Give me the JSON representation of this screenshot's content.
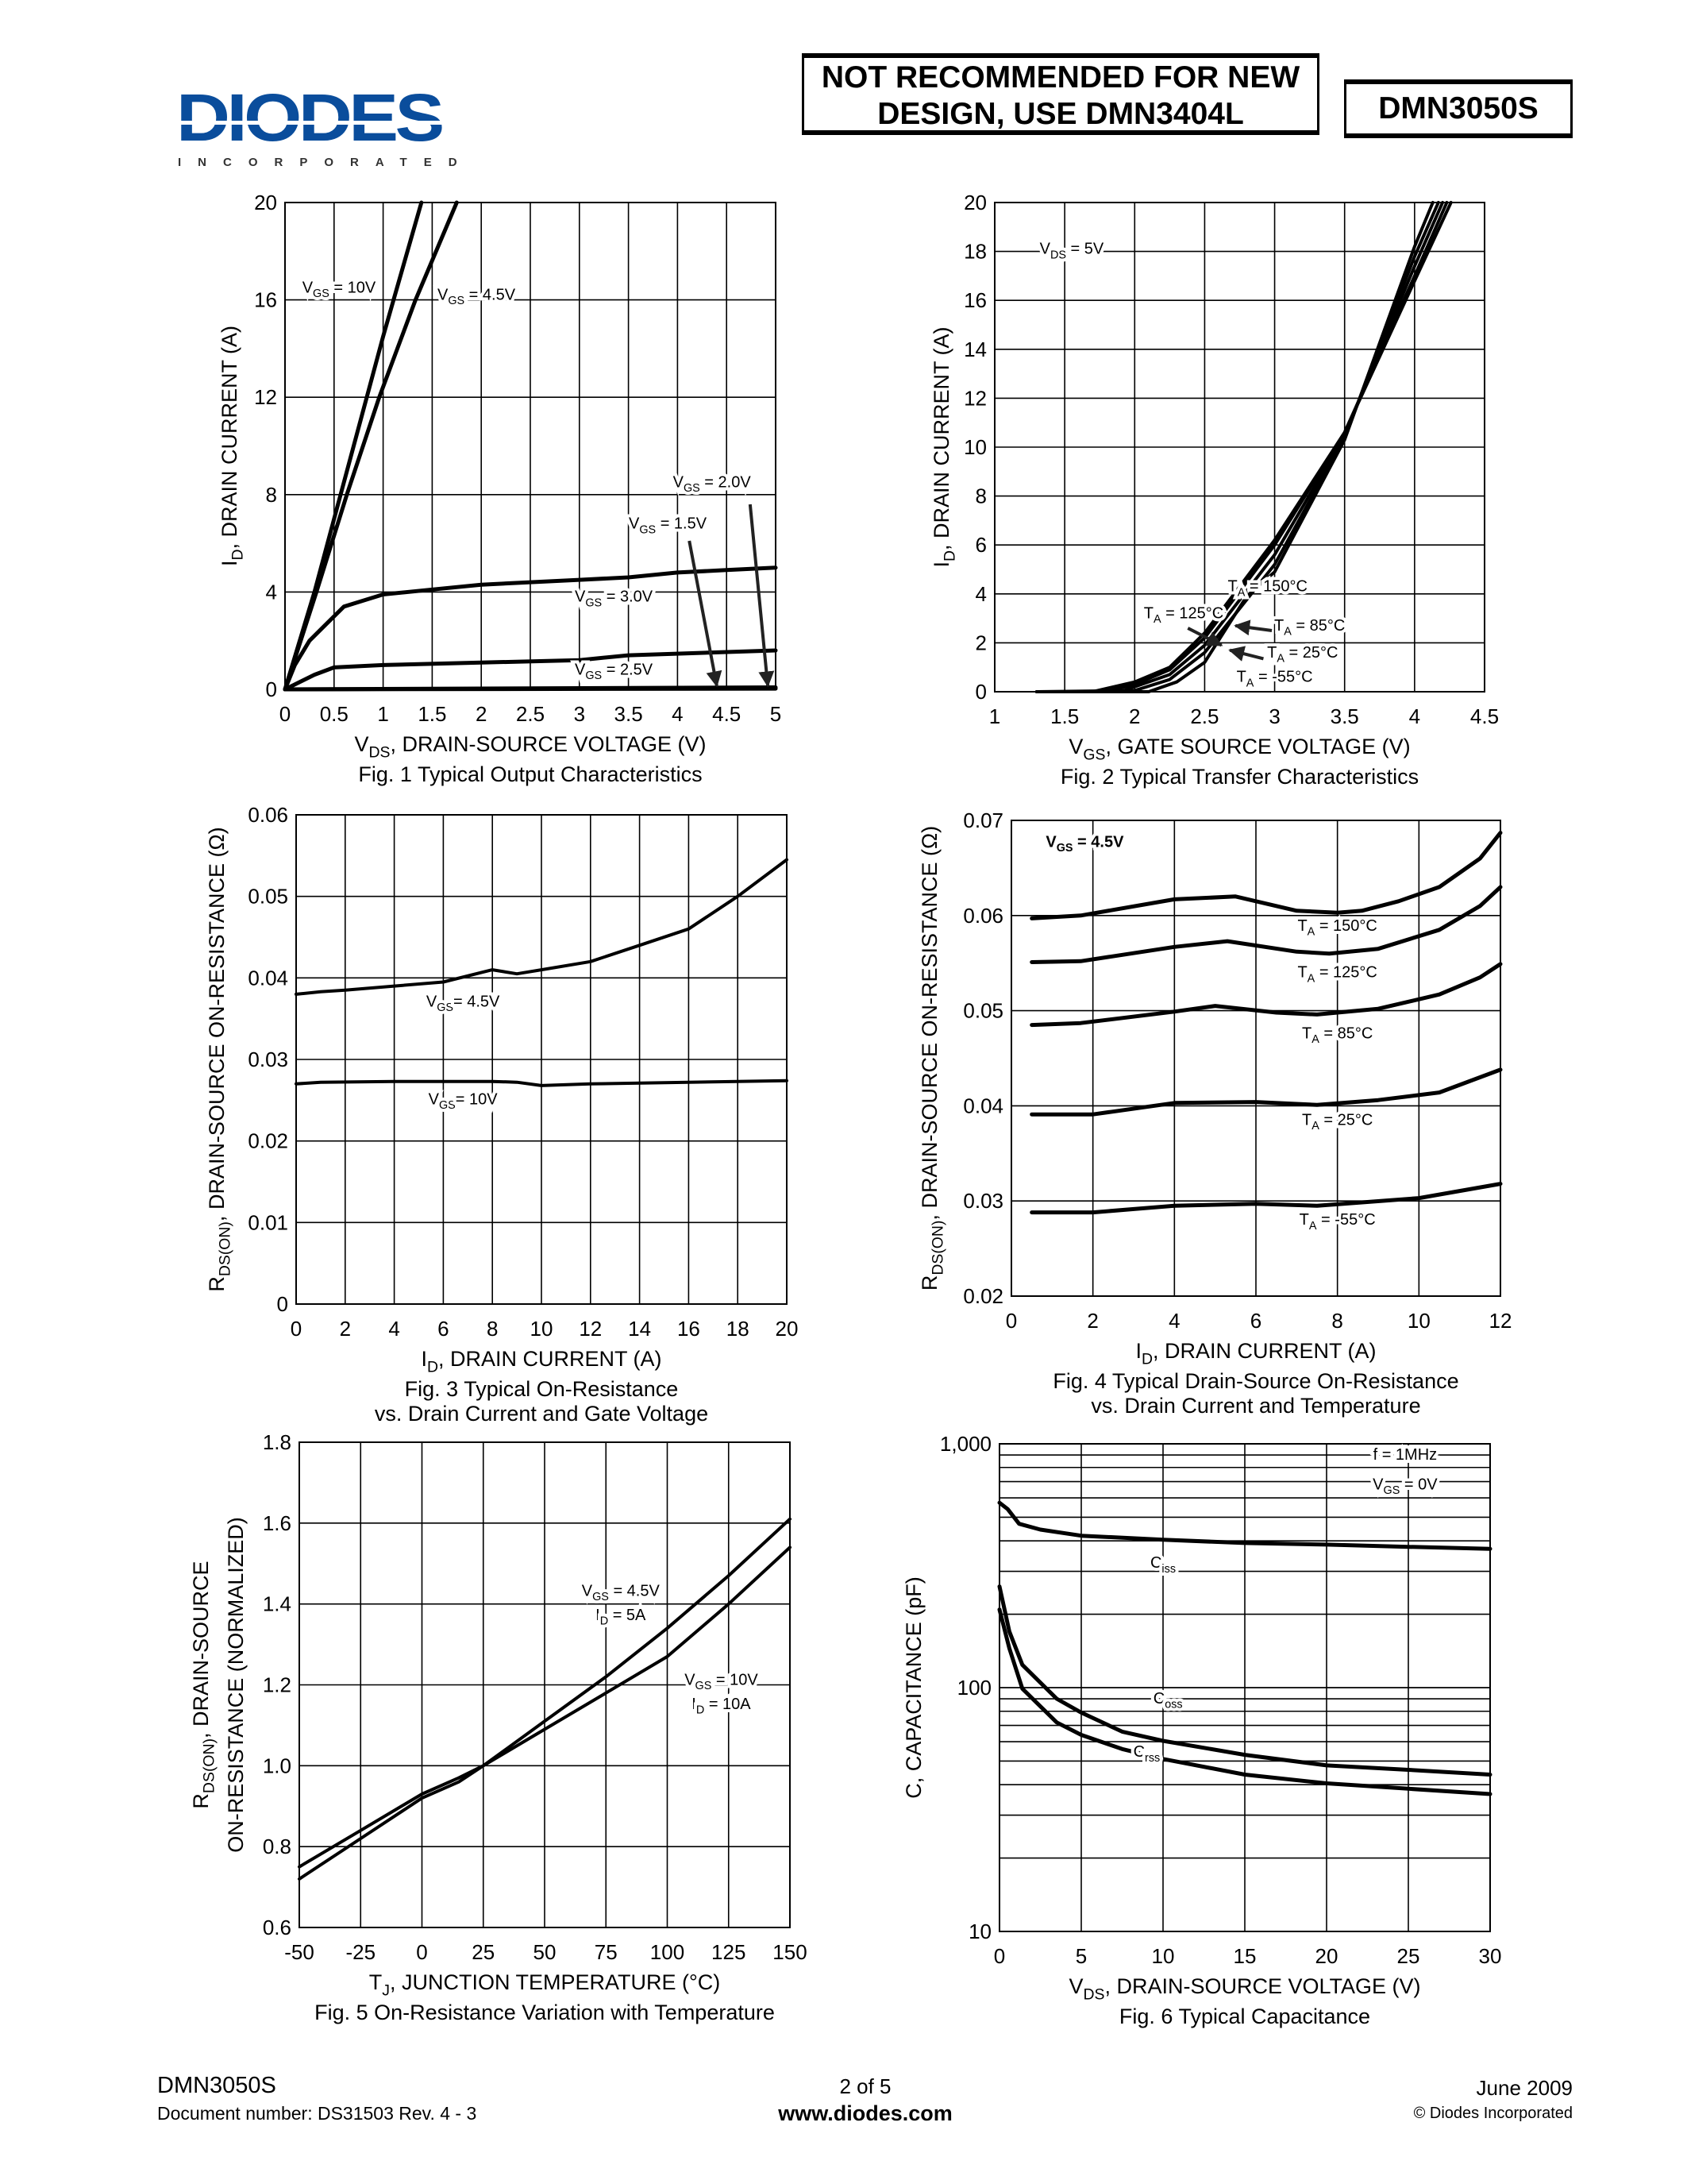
{
  "header": {
    "logo_text": "DIODES",
    "logo_subtext": "INCORPORATED",
    "logo_color": "#0a4d9c",
    "notice_line1": "NOT RECOMMENDED FOR NEW",
    "notice_line2": "DESIGN, USE DMN3404L",
    "part_number": "DMN3050S"
  },
  "footer": {
    "part_number": "DMN3050S",
    "document_number": "Document number: DS31503 Rev. 4 - 3",
    "page": "2 of 5",
    "website": "www.diodes.com",
    "date": "June 2009",
    "copyright": "© Diodes Incorporated"
  },
  "chart_data": [
    {
      "type": "line",
      "caption": [
        "Fig. 1 Typical Output Characteristics"
      ],
      "xlabel": {
        "base": "V",
        "sub": "DS",
        "tail": ", DRAIN-SOURCE VOLTAGE (V)"
      },
      "ylabel": [
        {
          "base": "I",
          "sub": "D",
          "tail": ", DRAIN CURRENT (A)"
        }
      ],
      "xlim": [
        0,
        5
      ],
      "ylim": [
        0,
        20
      ],
      "yscale": "linear",
      "grid": true,
      "xticks": [
        0,
        0.5,
        1,
        1.5,
        2,
        2.5,
        3,
        3.5,
        4,
        4.5,
        5
      ],
      "xticklabels": [
        "0",
        "0.5",
        "1",
        "1.5",
        "2",
        "2.5",
        "3",
        "3.5",
        "4",
        "4.5",
        "5"
      ],
      "yticks": [
        0,
        4,
        8,
        12,
        16,
        20
      ],
      "yticklabels": [
        "0",
        "4",
        "8",
        "12",
        "16",
        "20"
      ],
      "annotations": [
        [
          {
            "base": "V",
            "sub": "GS",
            "tail": " = 10V"
          }
        ],
        [
          {
            "base": "V",
            "sub": "GS",
            "tail": " = 4.5V"
          }
        ],
        [
          {
            "base": "V",
            "sub": "GS",
            "tail": " = 2.0V"
          }
        ],
        [
          {
            "base": "V",
            "sub": "GS",
            "tail": " = 1.5V"
          }
        ],
        [
          {
            "base": "V",
            "sub": "GS",
            "tail": " = 3.0V"
          }
        ],
        [
          {
            "base": "V",
            "sub": "GS",
            "tail": " = 2.5V"
          }
        ]
      ],
      "series": [
        {
          "x": [
            0,
            0.3,
            0.7,
            1.0,
            1.39
          ],
          "y": [
            0,
            4,
            10,
            14.5,
            20
          ]
        },
        {
          "x": [
            0,
            0.32,
            0.63,
            0.96,
            1.33,
            1.75
          ],
          "y": [
            0,
            4,
            8,
            12,
            16,
            20
          ]
        },
        {
          "x": [
            0,
            0.1,
            0.25,
            0.4,
            0.6,
            1.0,
            1.5,
            2.0,
            3.0,
            3.5,
            4.0,
            4.5,
            5.0
          ],
          "y": [
            0,
            1.0,
            2.0,
            2.6,
            3.4,
            3.9,
            4.1,
            4.3,
            4.5,
            4.6,
            4.8,
            4.9,
            5.0
          ]
        },
        {
          "x": [
            0,
            0.3,
            0.5,
            1.0,
            2.0,
            3.0,
            3.5,
            5.0
          ],
          "y": [
            0,
            0.6,
            0.9,
            1.0,
            1.1,
            1.2,
            1.4,
            1.6
          ]
        },
        {
          "x": [
            0,
            5
          ],
          "y": [
            0,
            0.08
          ]
        },
        {
          "x": [
            0,
            5
          ],
          "y": [
            0,
            0.03
          ]
        }
      ]
    },
    {
      "type": "line",
      "caption": [
        "Fig. 2 Typical Transfer Characteristics"
      ],
      "xlabel": {
        "base": "V",
        "sub": "GS",
        "tail": ", GATE SOURCE VOLTAGE (V)"
      },
      "ylabel": [
        {
          "base": "I",
          "sub": "D",
          "tail": ", DRAIN CURRENT (A)"
        }
      ],
      "xlim": [
        1,
        4.5
      ],
      "ylim": [
        0,
        20
      ],
      "yscale": "linear",
      "grid": true,
      "xticks": [
        1,
        1.5,
        2,
        2.5,
        3,
        3.5,
        4,
        4.5
      ],
      "xticklabels": [
        "1",
        "1.5",
        "2",
        "2.5",
        "3",
        "3.5",
        "4",
        "4.5"
      ],
      "yticks": [
        0,
        2,
        4,
        6,
        8,
        10,
        12,
        14,
        16,
        18,
        20
      ],
      "yticklabels": [
        "0",
        "2",
        "4",
        "6",
        "8",
        "10",
        "12",
        "14",
        "16",
        "18",
        "20"
      ],
      "annotations": [
        [
          {
            "base": "V",
            "sub": "DS",
            "tail": " = 5V"
          }
        ],
        [
          {
            "base": "T",
            "sub": "A",
            "tail": " = 150°C"
          }
        ],
        [
          {
            "base": "T",
            "sub": "A",
            "tail": " = 125°C"
          }
        ],
        [
          {
            "base": "T",
            "sub": "A",
            "tail": " = 85°C"
          }
        ],
        [
          {
            "base": "T",
            "sub": "A",
            "tail": " = 25°C"
          }
        ],
        [
          {
            "base": "T",
            "sub": "A",
            "tail": " = -55°C"
          }
        ]
      ],
      "series": [
        {
          "x": [
            1.3,
            1.7,
            2.0,
            2.25,
            2.5,
            3.0,
            3.5,
            4.0,
            4.26
          ],
          "y": [
            0,
            0,
            0.4,
            1.0,
            2.4,
            6.2,
            10.6,
            16.8,
            20
          ]
        },
        {
          "x": [
            1.3,
            1.8,
            2.0,
            2.25,
            2.5,
            3.0,
            3.5,
            4.0,
            4.23
          ],
          "y": [
            0,
            0,
            0.3,
            0.9,
            2.2,
            6.0,
            10.6,
            17.0,
            20
          ]
        },
        {
          "x": [
            1.3,
            1.9,
            2.0,
            2.25,
            2.5,
            3.0,
            3.5,
            4.0,
            4.2
          ],
          "y": [
            0,
            0,
            0.2,
            0.7,
            1.9,
            5.6,
            10.5,
            17.4,
            20
          ]
        },
        {
          "x": [
            1.3,
            2.0,
            2.25,
            2.5,
            3.0,
            3.5,
            4.0,
            4.17
          ],
          "y": [
            0,
            0.05,
            0.5,
            1.6,
            5.2,
            10.4,
            17.8,
            20
          ]
        },
        {
          "x": [
            1.3,
            2.1,
            2.3,
            2.5,
            2.8,
            3.0,
            3.5,
            4.0,
            4.13
          ],
          "y": [
            0,
            0,
            0.4,
            1.2,
            3.9,
            4.9,
            10.3,
            18.2,
            20
          ]
        }
      ]
    },
    {
      "type": "line",
      "caption": [
        "Fig. 3 Typical On-Resistance",
        "vs. Drain Current and Gate Voltage"
      ],
      "xlabel": {
        "base": "I",
        "sub": "D",
        "tail": ", DRAIN CURRENT (A)"
      },
      "ylabel": [
        {
          "base": "R",
          "sub": "DS(ON)",
          "tail": ", DRAIN-SOURCE ON-RESISTANCE (Ω)"
        }
      ],
      "xlim": [
        0,
        20
      ],
      "ylim": [
        0,
        0.06
      ],
      "yscale": "linear",
      "grid": true,
      "xticks": [
        0,
        2,
        4,
        6,
        8,
        10,
        12,
        14,
        16,
        18,
        20
      ],
      "xticklabels": [
        "0",
        "2",
        "4",
        "6",
        "8",
        "10",
        "12",
        "14",
        "16",
        "18",
        "20"
      ],
      "yticks": [
        0,
        0.01,
        0.02,
        0.03,
        0.04,
        0.05,
        0.06
      ],
      "yticklabels": [
        "0",
        "0.01",
        "0.02",
        "0.03",
        "0.04",
        "0.05",
        "0.06"
      ],
      "annotations": [
        [
          {
            "base": "V",
            "sub": "GS",
            "tail": "= 4.5V"
          }
        ],
        [
          {
            "base": "V",
            "sub": "GS",
            "tail": "= 10V"
          }
        ]
      ],
      "series": [
        {
          "x": [
            0,
            1,
            2,
            4,
            6,
            8,
            9,
            10,
            12,
            14,
            16,
            18,
            20
          ],
          "y": [
            0.038,
            0.0383,
            0.0385,
            0.039,
            0.0395,
            0.041,
            0.0405,
            0.041,
            0.042,
            0.044,
            0.046,
            0.05,
            0.0545
          ]
        },
        {
          "x": [
            0,
            1,
            4,
            8,
            9,
            10,
            12,
            16,
            20
          ],
          "y": [
            0.027,
            0.0272,
            0.0273,
            0.0273,
            0.0272,
            0.0268,
            0.027,
            0.0272,
            0.0274
          ]
        }
      ]
    },
    {
      "type": "line",
      "caption": [
        "Fig. 4  Typical Drain-Source On-Resistance",
        "vs. Drain Current and Temperature"
      ],
      "xlabel": {
        "base": "I",
        "sub": "D",
        "tail": ", DRAIN CURRENT (A)"
      },
      "ylabel": [
        {
          "base": "R",
          "sub": "DS(ON)",
          "tail": ", DRAIN-SOURCE ON-RESISTANCE (Ω)"
        }
      ],
      "xlim": [
        0,
        12
      ],
      "ylim": [
        0.02,
        0.07
      ],
      "yscale": "linear",
      "grid": true,
      "xticks": [
        0,
        2,
        4,
        6,
        8,
        10,
        12
      ],
      "xticklabels": [
        "0",
        "2",
        "4",
        "6",
        "8",
        "10",
        "12"
      ],
      "yticks": [
        0.02,
        0.03,
        0.04,
        0.05,
        0.06,
        0.07
      ],
      "yticklabels": [
        "0.02",
        "0.03",
        "0.04",
        "0.05",
        "0.06",
        "0.07"
      ],
      "annotations": [
        [
          {
            "base": "V",
            "sub": "GS",
            "tail": " = 4.5V"
          }
        ],
        [
          {
            "base": "T",
            "sub": "A",
            "tail": " = 150°C"
          }
        ],
        [
          {
            "base": "T",
            "sub": "A",
            "tail": " = 125°C"
          }
        ],
        [
          {
            "base": "T",
            "sub": "A",
            "tail": " = 85°C"
          }
        ],
        [
          {
            "base": "T",
            "sub": "A",
            "tail": " = 25°C"
          }
        ],
        [
          {
            "base": "T",
            "sub": "A",
            "tail": " = -55°C"
          }
        ]
      ],
      "series": [
        {
          "x": [
            0.5,
            1.7,
            4,
            5.5,
            7,
            8,
            8.6,
            9.5,
            10.5,
            11.5,
            12
          ],
          "y": [
            0.0597,
            0.06,
            0.0617,
            0.062,
            0.0605,
            0.0603,
            0.0605,
            0.0615,
            0.063,
            0.066,
            0.0687
          ]
        },
        {
          "x": [
            0.5,
            1.7,
            4,
            5.3,
            7,
            7.8,
            9,
            10.5,
            11.5,
            12
          ],
          "y": [
            0.0551,
            0.0552,
            0.0567,
            0.0573,
            0.0562,
            0.056,
            0.0565,
            0.0585,
            0.061,
            0.063
          ]
        },
        {
          "x": [
            0.5,
            1.7,
            4,
            5,
            6.5,
            7.5,
            9,
            10.5,
            11.5,
            12
          ],
          "y": [
            0.0485,
            0.0487,
            0.0499,
            0.0505,
            0.0498,
            0.0496,
            0.0502,
            0.0517,
            0.0535,
            0.0549
          ]
        },
        {
          "x": [
            0.5,
            2,
            4,
            6,
            7.5,
            9,
            10.5,
            12
          ],
          "y": [
            0.0391,
            0.0391,
            0.0403,
            0.0404,
            0.0401,
            0.0406,
            0.0414,
            0.0438
          ]
        },
        {
          "x": [
            0.5,
            2,
            4,
            6,
            7.5,
            10,
            12
          ],
          "y": [
            0.0288,
            0.0288,
            0.0295,
            0.0297,
            0.0295,
            0.0303,
            0.0318
          ]
        }
      ]
    },
    {
      "type": "line",
      "caption": [
        "Fig. 5 On-Resistance Variation with Temperature"
      ],
      "xlabel": {
        "base": "T",
        "sub": "J",
        "tail": ", JUNCTION TEMPERATURE (°C)"
      },
      "ylabel": [
        {
          "base": "R",
          "sub": "DS(ON)",
          "tail": ", DRAIN-SOURCE"
        },
        {
          "base": "",
          "sub": "",
          "tail": "ON-RESISTANCE (NORMALIZED)"
        }
      ],
      "xlim": [
        -50,
        150
      ],
      "ylim": [
        0.6,
        1.8
      ],
      "yscale": "linear",
      "grid": true,
      "xticks": [
        -50,
        -25,
        0,
        25,
        50,
        75,
        100,
        125,
        150
      ],
      "xticklabels": [
        "-50",
        "-25",
        "0",
        "25",
        "50",
        "75",
        "100",
        "125",
        "150"
      ],
      "yticks": [
        0.6,
        0.8,
        1.0,
        1.2,
        1.4,
        1.6,
        1.8
      ],
      "yticklabels": [
        "0.6",
        "0.8",
        "1.0",
        "1.2",
        "1.4",
        "1.6",
        "1.8"
      ],
      "annotations": [
        [
          {
            "base": "V",
            "sub": "GS",
            "tail": " = 4.5V"
          },
          {
            "base": "I",
            "sub": "D",
            "tail": " = 5A"
          }
        ],
        [
          {
            "base": "V",
            "sub": "GS",
            "tail": " = 10V"
          },
          {
            "base": "I",
            "sub": "D",
            "tail": " = 10A"
          }
        ]
      ],
      "series": [
        {
          "x": [
            -50,
            -25,
            0,
            15,
            25,
            50,
            75,
            100,
            125,
            150
          ],
          "y": [
            0.72,
            0.82,
            0.92,
            0.96,
            1.0,
            1.11,
            1.22,
            1.34,
            1.47,
            1.61
          ]
        },
        {
          "x": [
            -50,
            -25,
            0,
            15,
            25,
            50,
            75,
            100,
            125,
            150
          ],
          "y": [
            0.75,
            0.84,
            0.93,
            0.97,
            1.0,
            1.09,
            1.18,
            1.27,
            1.4,
            1.54
          ]
        }
      ]
    },
    {
      "type": "line",
      "caption": [
        "Fig. 6 Typical Capacitance"
      ],
      "xlabel": {
        "base": "V",
        "sub": "DS",
        "tail": ", DRAIN-SOURCE VOLTAGE (V)"
      },
      "ylabel": [
        {
          "base": "",
          "sub": "",
          "tail": "C, CAPACITANCE (pF)"
        }
      ],
      "xlim": [
        0,
        30
      ],
      "ylim": [
        10,
        1000
      ],
      "yscale": "log",
      "grid": true,
      "xticks": [
        0,
        5,
        10,
        15,
        20,
        25,
        30
      ],
      "xticklabels": [
        "0",
        "5",
        "10",
        "15",
        "20",
        "25",
        "30"
      ],
      "yticks": [
        10,
        100,
        1000
      ],
      "yticklabels": [
        "10",
        "100",
        "1,000"
      ],
      "annotations": [
        [
          {
            "base": "",
            "sub": "",
            "tail": "f = 1MHz"
          }
        ],
        [
          {
            "base": "V",
            "sub": "GS",
            "tail": " = 0V"
          }
        ],
        [
          {
            "base": "C",
            "sub": "iss",
            "tail": ""
          }
        ],
        [
          {
            "base": "C",
            "sub": "oss",
            "tail": ""
          }
        ],
        [
          {
            "base": "C",
            "sub": "rss",
            "tail": ""
          }
        ]
      ],
      "series": [
        {
          "name": "Ciss",
          "x": [
            0,
            0.5,
            1.2,
            2.5,
            5,
            10,
            15,
            20,
            25,
            30
          ],
          "y": [
            573,
            540,
            470,
            445,
            420,
            404,
            392,
            386,
            378,
            371
          ]
        },
        {
          "name": "Coss",
          "x": [
            0,
            0.6,
            1.4,
            3.5,
            5,
            7.5,
            10,
            15,
            20,
            25,
            30
          ],
          "y": [
            260,
            170,
            124,
            90,
            79,
            66,
            60.5,
            53,
            48,
            46,
            44
          ]
        },
        {
          "name": "Crss",
          "x": [
            0,
            0.6,
            1.4,
            3.5,
            5,
            7.5,
            10,
            15,
            20,
            25,
            30
          ],
          "y": [
            209,
            145,
            99,
            72,
            64,
            56,
            51,
            44,
            40.5,
            38.5,
            36.6
          ]
        }
      ]
    }
  ]
}
